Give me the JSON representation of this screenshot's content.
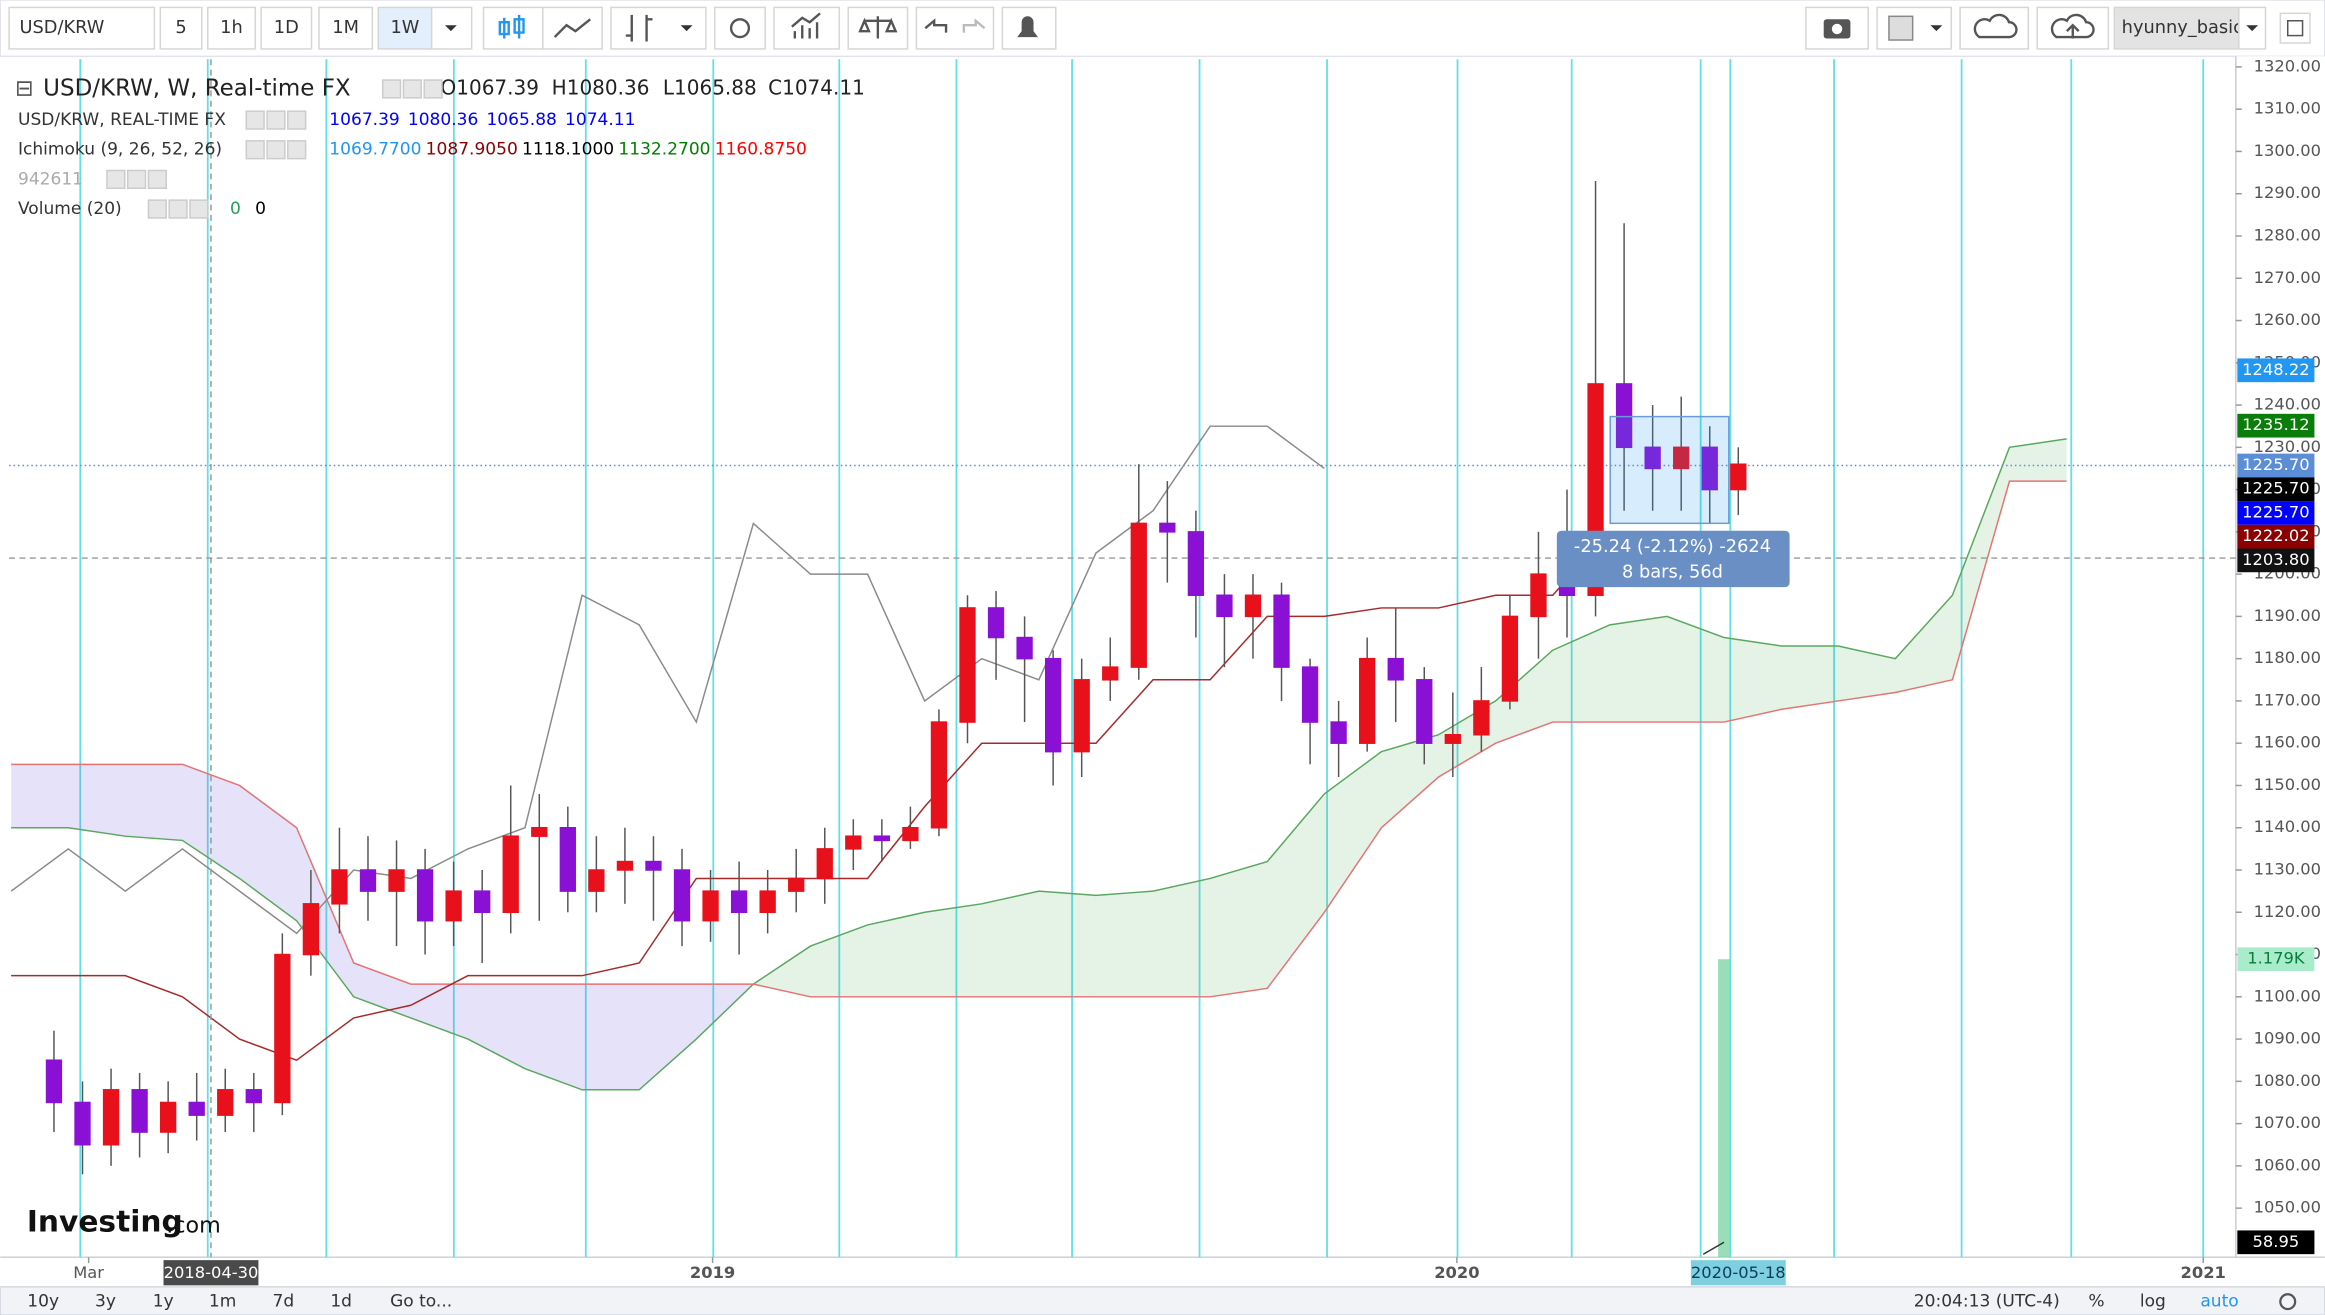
{
  "toolbar": {
    "symbol": "USD/KRW",
    "intervals": [
      "5",
      "1h",
      "1D",
      "1M",
      "1W"
    ],
    "active_interval": 4,
    "user": "hyunny_basic"
  },
  "legend": {
    "title": "USD/KRW, W, Real-time FX",
    "ohlc": [
      "O1067.39",
      "H1080.36",
      "L1065.88",
      "C1074.11"
    ],
    "rows": [
      {
        "name": "USD/KRW, REAL-TIME FX",
        "values": [
          "1067.39",
          "1080.36",
          "1065.88",
          "1074.11"
        ],
        "colors": [
          "#0000ff",
          "#0000ff",
          "#0000ff",
          "#0000ff"
        ]
      },
      {
        "name": "Ichimoku (9, 26, 52, 26)",
        "values": [
          "1069.7700",
          "1087.9050",
          "1118.1000",
          "1132.2700",
          "1160.8750"
        ],
        "colors": [
          "#2196f3",
          "#8b0000",
          "#000000",
          "#008000",
          "#ff0000"
        ]
      },
      {
        "name": "942611",
        "values": [],
        "colors": []
      },
      {
        "name": "Volume (20)",
        "values": [
          "0",
          "0"
        ],
        "colors": [
          "#22a05a",
          "#000000"
        ]
      }
    ]
  },
  "logo": {
    "brand": "Investing",
    "suffix": ".com"
  },
  "measure": {
    "text": "-25.24 (-2.12%) -2624",
    "detail": "8 bars, 56d"
  },
  "chart_data": {
    "type": "candlestick",
    "xlim": [
      "2018-01-21",
      "2021-01-17"
    ],
    "xticks": [
      {
        "value": "2018-03-01",
        "label": "Mar"
      },
      {
        "value": "2019-01-01",
        "label": "2019"
      },
      {
        "value": "2020-01-01",
        "label": "2020"
      },
      {
        "value": "2021-01-01",
        "label": "2021"
      }
    ],
    "crosshair_x": "2018-04-30",
    "selection_x": "2020-05-18",
    "ylim": [
      1038.4,
      1321.8
    ],
    "yticks": [
      {
        "value": 1050,
        "label": "1050.00"
      },
      {
        "value": 1060,
        "label": "1060.00"
      },
      {
        "value": 1070,
        "label": "1070.00"
      },
      {
        "value": 1080,
        "label": "1080.00"
      },
      {
        "value": 1090,
        "label": "1090.00"
      },
      {
        "value": 1100,
        "label": "1100.00"
      },
      {
        "value": 1110,
        "label": "1110.00"
      },
      {
        "value": 1120,
        "label": "1120.00"
      },
      {
        "value": 1130,
        "label": "1130.00"
      },
      {
        "value": 1140,
        "label": "1140.00"
      },
      {
        "value": 1150,
        "label": "1150.00"
      },
      {
        "value": 1160,
        "label": "1160.00"
      },
      {
        "value": 1170,
        "label": "1170.00"
      },
      {
        "value": 1180,
        "label": "1180.00"
      },
      {
        "value": 1190,
        "label": "1190.00"
      },
      {
        "value": 1200,
        "label": "1200.00"
      },
      {
        "value": 1210,
        "label": "1210.00"
      },
      {
        "value": 1220,
        "label": "1220.00"
      },
      {
        "value": 1230,
        "label": "1230.00"
      },
      {
        "value": 1240,
        "label": "1240.00"
      },
      {
        "value": 1250,
        "label": "1250.00"
      },
      {
        "value": 1260,
        "label": "1260.00"
      },
      {
        "value": 1270,
        "label": "1270.00"
      },
      {
        "value": 1280,
        "label": "1280.00"
      },
      {
        "value": 1290,
        "label": "1290.00"
      },
      {
        "value": 1300,
        "label": "1300.00"
      },
      {
        "value": 1310,
        "label": "1310.00"
      },
      {
        "value": 1320,
        "label": "1320.00"
      }
    ],
    "up_color": "#e8111b",
    "down_color": "#8a10d6",
    "x": [
      "2018-02-12",
      "2018-02-26",
      "2018-03-12",
      "2018-03-26",
      "2018-04-09",
      "2018-04-23",
      "2018-05-07",
      "2018-05-21",
      "2018-06-04",
      "2018-06-18",
      "2018-07-02",
      "2018-07-16",
      "2018-07-30",
      "2018-08-13",
      "2018-08-27",
      "2018-09-10",
      "2018-09-24",
      "2018-10-08",
      "2018-10-22",
      "2018-11-05",
      "2018-11-19",
      "2018-12-03",
      "2018-12-17",
      "2018-12-31",
      "2019-01-14",
      "2019-01-28",
      "2019-02-11",
      "2019-02-25",
      "2019-03-11",
      "2019-03-25",
      "2019-04-08",
      "2019-04-22",
      "2019-05-06",
      "2019-05-20",
      "2019-06-03",
      "2019-06-17",
      "2019-07-01",
      "2019-07-15",
      "2019-07-29",
      "2019-08-12",
      "2019-08-26",
      "2019-09-09",
      "2019-09-23",
      "2019-10-07",
      "2019-10-21",
      "2019-11-04",
      "2019-11-18",
      "2019-12-02",
      "2019-12-16",
      "2019-12-30",
      "2020-01-13",
      "2020-01-27",
      "2020-02-10",
      "2020-02-24",
      "2020-03-09",
      "2020-03-23",
      "2020-04-06",
      "2020-04-20",
      "2020-05-04",
      "2020-05-18"
    ],
    "open": [
      1085,
      1075,
      1065,
      1078,
      1068,
      1075,
      1072,
      1078,
      1075,
      1110,
      1122,
      1130,
      1125,
      1130,
      1118,
      1125,
      1120,
      1138,
      1140,
      1125,
      1130,
      1132,
      1130,
      1118,
      1125,
      1120,
      1125,
      1128,
      1135,
      1138,
      1137,
      1140,
      1165,
      1192,
      1185,
      1180,
      1158,
      1175,
      1178,
      1212,
      1210,
      1195,
      1190,
      1195,
      1178,
      1165,
      1160,
      1180,
      1175,
      1160,
      1162,
      1170,
      1190,
      1200,
      1195,
      1245,
      1230,
      1225,
      1230,
      1220
    ],
    "high": [
      1092,
      1080,
      1083,
      1082,
      1080,
      1082,
      1083,
      1082,
      1115,
      1130,
      1140,
      1138,
      1137,
      1135,
      1132,
      1130,
      1150,
      1148,
      1145,
      1138,
      1140,
      1138,
      1135,
      1130,
      1132,
      1130,
      1135,
      1140,
      1142,
      1142,
      1145,
      1168,
      1195,
      1196,
      1190,
      1182,
      1180,
      1185,
      1226,
      1222,
      1215,
      1200,
      1200,
      1198,
      1180,
      1170,
      1185,
      1192,
      1178,
      1172,
      1178,
      1195,
      1210,
      1220,
      1293,
      1283,
      1240,
      1242,
      1235,
      1230
    ],
    "low": [
      1068,
      1058,
      1060,
      1062,
      1063,
      1066,
      1068,
      1068,
      1072,
      1105,
      1115,
      1118,
      1112,
      1110,
      1112,
      1108,
      1115,
      1118,
      1120,
      1120,
      1122,
      1118,
      1112,
      1113,
      1110,
      1115,
      1120,
      1122,
      1130,
      1132,
      1135,
      1138,
      1160,
      1175,
      1165,
      1150,
      1152,
      1170,
      1175,
      1198,
      1185,
      1178,
      1180,
      1170,
      1155,
      1152,
      1158,
      1165,
      1155,
      1152,
      1158,
      1168,
      1180,
      1185,
      1190,
      1215,
      1215,
      1215,
      1212,
      1214
    ],
    "close": [
      1075,
      1065,
      1078,
      1068,
      1075,
      1072,
      1078,
      1075,
      1110,
      1122,
      1130,
      1125,
      1130,
      1118,
      1125,
      1120,
      1138,
      1140,
      1125,
      1130,
      1132,
      1130,
      1118,
      1125,
      1120,
      1125,
      1128,
      1135,
      1138,
      1137,
      1140,
      1165,
      1192,
      1185,
      1180,
      1158,
      1175,
      1178,
      1212,
      1210,
      1195,
      1190,
      1195,
      1178,
      1165,
      1160,
      1180,
      1175,
      1160,
      1162,
      1170,
      1190,
      1200,
      1195,
      1245,
      1230,
      1225,
      1230,
      1220,
      1226
    ],
    "ichimoku": {
      "x": [
        "2018-01-22",
        "2018-02-19",
        "2018-03-19",
        "2018-04-16",
        "2018-05-14",
        "2018-06-11",
        "2018-07-09",
        "2018-08-06",
        "2018-09-03",
        "2018-10-01",
        "2018-10-29",
        "2018-11-26",
        "2018-12-24",
        "2019-01-21",
        "2019-02-18",
        "2019-03-18",
        "2019-04-15",
        "2019-05-13",
        "2019-06-10",
        "2019-07-08",
        "2019-08-05",
        "2019-09-02",
        "2019-09-30",
        "2019-10-28",
        "2019-11-25",
        "2019-12-23",
        "2020-01-20",
        "2020-02-17",
        "2020-03-16",
        "2020-04-13",
        "2020-05-11",
        "2020-06-08",
        "2020-07-06",
        "2020-08-03",
        "2020-08-31",
        "2020-09-28",
        "2020-10-26"
      ],
      "series": [
        {
          "color": "#5aa85f",
          "values": [
            1140,
            1140,
            1138,
            1137,
            1128,
            1118,
            1100,
            1095,
            1090,
            1083,
            1078,
            1078,
            1090,
            1103,
            1112,
            1117,
            1120,
            1122,
            1125,
            1124,
            1125,
            1128,
            1132,
            1148,
            1158,
            1162,
            1170,
            1182,
            1188,
            1190,
            1185,
            1183,
            1183,
            1180,
            1195,
            1230,
            1232
          ]
        },
        {
          "color": "#e57373",
          "values": [
            1155,
            1155,
            1155,
            1155,
            1150,
            1140,
            1108,
            1103,
            1103,
            1103,
            1103,
            1103,
            1103,
            1103,
            1100,
            1100,
            1100,
            1100,
            1100,
            1100,
            1100,
            1100,
            1102,
            1120,
            1140,
            1152,
            1160,
            1165,
            1165,
            1165,
            1165,
            1168,
            1170,
            1172,
            1175,
            1222,
            1222
          ]
        },
        {
          "color": "#8a8a8a",
          "values": [
            1125,
            1135,
            1125,
            1135,
            1125,
            1115,
            1130,
            1128,
            1135,
            1140,
            1195,
            1188,
            1165,
            1212,
            1200,
            1200,
            1170,
            1180,
            1175,
            1205,
            1215,
            1235,
            1235,
            1225,
            null,
            null,
            null,
            null,
            null,
            null,
            null,
            null,
            null,
            null,
            null,
            null,
            null
          ]
        },
        {
          "color": "#a52a2a",
          "values": [
            1105,
            1105,
            1105,
            1100,
            1090,
            1085,
            1095,
            1098,
            1105,
            1105,
            1105,
            1108,
            1128,
            1128,
            1128,
            1128,
            1145,
            1160,
            1160,
            1160,
            1175,
            1175,
            1190,
            1190,
            1192,
            1192,
            1195,
            1195,
            1210,
            1210,
            null,
            null,
            null,
            null,
            null,
            null,
            null
          ]
        }
      ],
      "bull_fill": "#4caf50",
      "bear_fill": "#7b6fe0"
    },
    "price_labels": [
      {
        "value": 1248.22,
        "label": "1248.22",
        "color": "#2196f3"
      },
      {
        "value": 1235.12,
        "label": "1235.12",
        "color": "#0a7d0a"
      },
      {
        "value": 1225.7,
        "label": "1225.70",
        "color": "#5b8ed6"
      },
      {
        "value": 1225.7,
        "label": "1225.70",
        "color": "#000000"
      },
      {
        "value": 1225.7,
        "label": "1225.70",
        "color": "#0000ff"
      },
      {
        "value": 1222.02,
        "label": "1222.02",
        "color": "#8b0000"
      },
      {
        "value": 1203.8,
        "label": "1203.80",
        "color": "#111111"
      }
    ],
    "volume": {
      "ylim": [
        0,
        4740
      ],
      "value": 1179,
      "label": "1.179K",
      "color": "#7fd6a8",
      "x": "2020-05-11",
      "indicator": {
        "value": 58.95,
        "label": "58.95",
        "color": "#000000"
      }
    }
  },
  "bottom_bar": {
    "ranges": [
      "10y",
      "3y",
      "1y",
      "1m",
      "7d",
      "1d"
    ],
    "goto": "Go to...",
    "time": "20:04:13 (UTC-4)",
    "options": [
      "%",
      "log",
      "auto"
    ]
  }
}
